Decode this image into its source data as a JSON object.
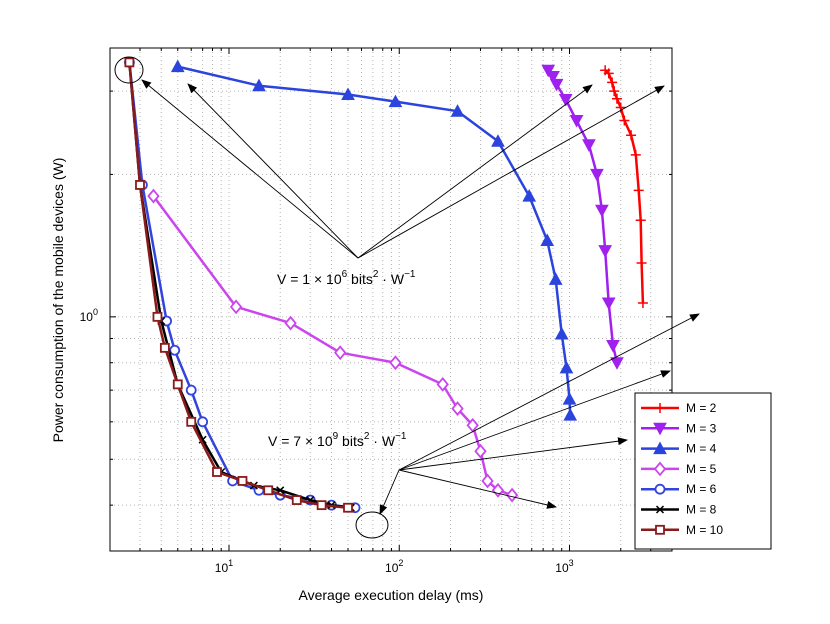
{
  "chart_data": {
    "type": "line",
    "title": "",
    "xlabel": "Average execution delay (ms)",
    "ylabel": "Power consumption of the mobile devices (W)",
    "xscale": "log",
    "yscale": "log",
    "xlim": [
      2,
      4000
    ],
    "ylim": [
      0.32,
      3.7
    ],
    "grid": true,
    "legend_position": "bottom-right",
    "x_ticks": [
      {
        "value": 10,
        "base": "10",
        "exp": "1"
      },
      {
        "value": 100,
        "base": "10",
        "exp": "2"
      },
      {
        "value": 1000,
        "base": "10",
        "exp": "3"
      }
    ],
    "y_ticks": [
      {
        "value": 1,
        "base": "10",
        "exp": "0"
      }
    ],
    "series": [
      {
        "name": "M = 2",
        "color": "#ff0000",
        "marker": "plus",
        "points": [
          [
            1620,
            3.32
          ],
          [
            1700,
            3.27
          ],
          [
            1780,
            3.13
          ],
          [
            1830,
            3.0
          ],
          [
            1900,
            2.89
          ],
          [
            2000,
            2.77
          ],
          [
            2100,
            2.6
          ],
          [
            2300,
            2.42
          ],
          [
            2450,
            2.2
          ],
          [
            2550,
            1.85
          ],
          [
            2620,
            1.6
          ],
          [
            2650,
            1.3
          ],
          [
            2700,
            1.07
          ]
        ]
      },
      {
        "name": "M = 3",
        "color": "#a020f0",
        "marker": "triangle-down",
        "points": [
          [
            750,
            3.32
          ],
          [
            800,
            3.22
          ],
          [
            840,
            3.1
          ],
          [
            950,
            2.88
          ],
          [
            1100,
            2.6
          ],
          [
            1300,
            2.31
          ],
          [
            1450,
            2.0
          ],
          [
            1550,
            1.68
          ],
          [
            1620,
            1.38
          ],
          [
            1700,
            1.07
          ],
          [
            1800,
            0.87
          ],
          [
            1900,
            0.8
          ]
        ]
      },
      {
        "name": "M = 4",
        "color": "#2a44dd",
        "marker": "triangle-up",
        "points": [
          [
            5,
            3.38
          ],
          [
            15,
            3.08
          ],
          [
            50,
            2.95
          ],
          [
            95,
            2.85
          ],
          [
            220,
            2.72
          ],
          [
            380,
            2.35
          ],
          [
            580,
            1.8
          ],
          [
            740,
            1.45
          ],
          [
            830,
            1.2
          ],
          [
            900,
            0.92
          ],
          [
            960,
            0.78
          ],
          [
            1000,
            0.67
          ],
          [
            1010,
            0.62
          ]
        ]
      },
      {
        "name": "M = 5",
        "color": "#cc44ee",
        "marker": "diamond",
        "points": [
          [
            3.6,
            1.8
          ],
          [
            11,
            1.05
          ],
          [
            23,
            0.97
          ],
          [
            45,
            0.84
          ],
          [
            95,
            0.8
          ],
          [
            180,
            0.72
          ],
          [
            220,
            0.64
          ],
          [
            270,
            0.59
          ],
          [
            300,
            0.52
          ],
          [
            330,
            0.45
          ],
          [
            380,
            0.43
          ],
          [
            460,
            0.42
          ]
        ]
      },
      {
        "name": "M = 6",
        "color": "#3344dd",
        "marker": "circle",
        "points": [
          [
            2.6,
            3.45
          ],
          [
            3.1,
            1.9
          ],
          [
            4.3,
            0.98
          ],
          [
            4.8,
            0.85
          ],
          [
            6,
            0.7
          ],
          [
            7,
            0.6
          ],
          [
            10.5,
            0.45
          ],
          [
            15,
            0.43
          ],
          [
            20,
            0.42
          ],
          [
            30,
            0.41
          ],
          [
            40,
            0.4
          ],
          [
            55,
            0.395
          ]
        ]
      },
      {
        "name": "M = 8",
        "color": "#000000",
        "marker": "x",
        "points": [
          [
            2.6,
            3.45
          ],
          [
            3,
            1.9
          ],
          [
            4,
            0.98
          ],
          [
            5,
            0.72
          ],
          [
            7,
            0.55
          ],
          [
            9,
            0.47
          ],
          [
            14,
            0.44
          ],
          [
            20,
            0.43
          ],
          [
            30,
            0.41
          ],
          [
            40,
            0.4
          ],
          [
            52,
            0.395
          ]
        ]
      },
      {
        "name": "M = 10",
        "color": "#8b1a1a",
        "marker": "square",
        "points": [
          [
            2.6,
            3.45
          ],
          [
            3,
            1.9
          ],
          [
            3.8,
            1.0
          ],
          [
            4.2,
            0.86
          ],
          [
            5,
            0.72
          ],
          [
            6,
            0.6
          ],
          [
            8.5,
            0.47
          ],
          [
            12,
            0.45
          ],
          [
            17,
            0.43
          ],
          [
            25,
            0.41
          ],
          [
            35,
            0.4
          ],
          [
            50,
            0.395
          ]
        ]
      }
    ],
    "annotations": [
      {
        "text": "V = 1 × 10",
        "sup": "6",
        "text2": " bits",
        "sup2": "2",
        "text3": " · W",
        "sup3": "−1"
      },
      {
        "text": "V = 7 × 10",
        "sup": "9",
        "text2": " bits",
        "sup2": "2",
        "text3": " · W",
        "sup3": "−1"
      }
    ]
  }
}
